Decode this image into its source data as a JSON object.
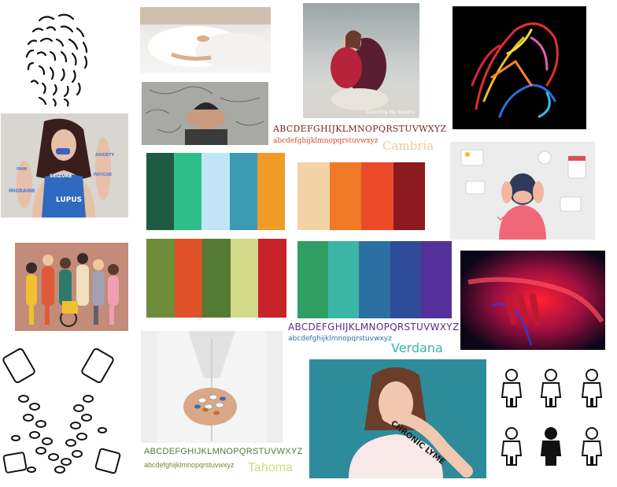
{
  "palettes": [
    {
      "colors": [
        "#1f5a45",
        "#2fbf8a",
        "#c0e6f5",
        "#3c9bb3",
        "#f09a28"
      ]
    },
    {
      "colors": [
        "#f2d3a8",
        "#f07826",
        "#ea4a28",
        "#8c1a1e"
      ]
    },
    {
      "colors": [
        "#6f8c3a",
        "#df5228",
        "#557a32",
        "#d4d889",
        "#c9232a"
      ]
    },
    {
      "colors": [
        "#2e9e63",
        "#3bb5a6",
        "#2b6fa3",
        "#2f4c9a",
        "#54319a"
      ]
    }
  ],
  "fonts": {
    "cambria": {
      "upper": "ABCDEFGHIJKLMNOPQRSTUVWXYZ",
      "lower": "abcdefghijklmnopqrstuvwxyz",
      "name": "Cambria"
    },
    "verdana": {
      "upper": "ABCDEFGHIJKLMNOPQRSTUVWXYZ",
      "lower": "abcdefghijklmnopqrstuvwxyz",
      "name": "Verdana"
    },
    "tahoma": {
      "upper": "ABCDEFGHIJKLMNOPQRSTUVWXYZ",
      "lower": "abcdefghijklmnopqrstuvwxyz",
      "name": "Tahoma"
    }
  },
  "photo_texts": {
    "lupus_words": [
      "SEIZURE",
      "LUPUS",
      "ANXIETY",
      "MIGRAINE",
      "FATIGUE",
      "PAIN"
    ],
    "lyme": "CHRONIC LYME",
    "watermark": "Counting My Spoons"
  },
  "colors": {
    "cambria_upper": "#7a1e1e",
    "cambria_lower": "#e04a2a",
    "cambria_name": "#f0c8a0",
    "verdana_upper": "#5a2d8c",
    "verdana_lower": "#2f6fa8",
    "verdana_name": "#3bb5a6",
    "tahoma_upper": "#557a32",
    "tahoma_lower": "#6f8c3a",
    "tahoma_name": "#d4d889"
  }
}
